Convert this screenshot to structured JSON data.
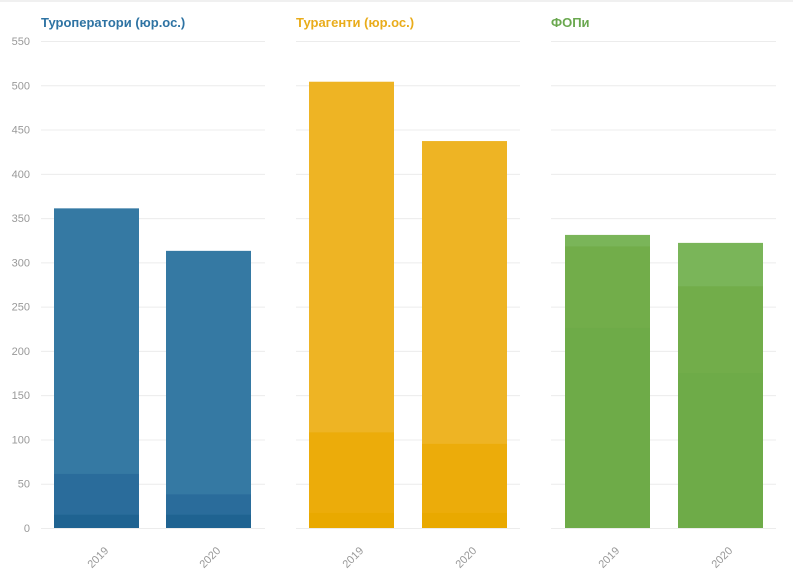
{
  "chart_data": [
    {
      "type": "bar",
      "title": "Туроператори (юр.ос.)",
      "color": "#2e73a3",
      "categories": [
        "2019",
        "2020"
      ],
      "series": [
        {
          "values": [
            15,
            15
          ],
          "color": "#1f6391"
        },
        {
          "values": [
            61,
            38
          ],
          "color": "#2a6c9b"
        },
        {
          "values": [
            361,
            313
          ],
          "color": "#3579a3"
        }
      ],
      "ylim": [
        0,
        550
      ],
      "yticks": [
        0,
        50,
        100,
        150,
        200,
        250,
        300,
        350,
        400,
        450,
        500,
        550
      ],
      "grid": true
    },
    {
      "type": "bar",
      "title": "Турагенти (юр.ос.)",
      "color": "#e9ac1b",
      "categories": [
        "2019",
        "2020"
      ],
      "series": [
        {
          "values": [
            17,
            17
          ],
          "color": "#e9a900"
        },
        {
          "values": [
            108,
            95
          ],
          "color": "#ecac0a"
        },
        {
          "values": [
            504,
            437
          ],
          "color": "#eeb424"
        }
      ],
      "ylim": [
        0,
        550
      ],
      "grid": true
    },
    {
      "type": "bar",
      "title": "ФОПи",
      "color": "#6aa84f",
      "categories": [
        "2019",
        "2020"
      ],
      "series": [
        {
          "values": [
            226,
            175
          ],
          "color": "#6eab48"
        },
        {
          "values": [
            318,
            273
          ],
          "color": "#72ad4a"
        },
        {
          "values": [
            331,
            322
          ],
          "color": "#7ab559"
        }
      ],
      "ylim": [
        0,
        550
      ],
      "grid": true
    }
  ]
}
